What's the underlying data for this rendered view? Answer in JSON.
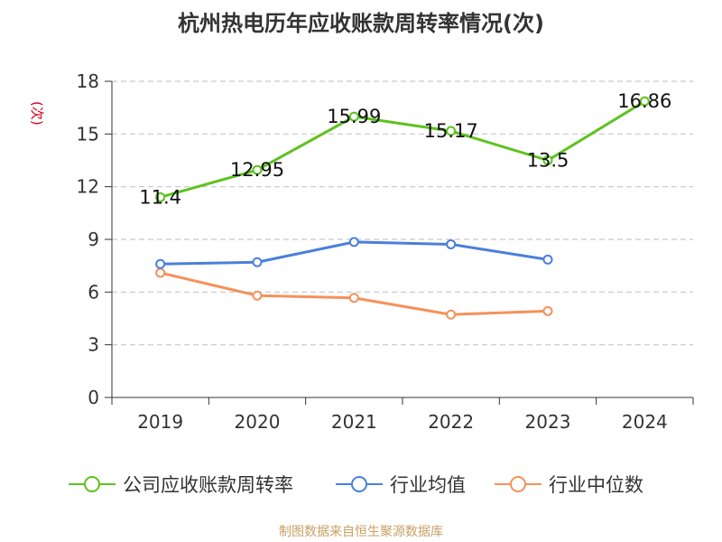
{
  "title": "杭州热电历年应收账款周转率情况(次)",
  "y_unit": "(次)",
  "footer": "制图数据来自恒生聚源数据库",
  "colors": {
    "company": "#5ec21e",
    "industry_avg": "#4a7fdc",
    "industry_median": "#f5915a",
    "grid": "#c8c8c8",
    "axis": "#333333"
  },
  "legend": [
    {
      "label": "公司应收账款周转率",
      "series": 0
    },
    {
      "label": "行业均值",
      "series": 1
    },
    {
      "label": "行业中位数",
      "series": 2
    }
  ],
  "chart_data": {
    "type": "line",
    "title": "杭州热电历年应收账款周转率情况(次)",
    "ylabel": "(次)",
    "xlabel": "",
    "categories": [
      "2019",
      "2020",
      "2021",
      "2022",
      "2023",
      "2024"
    ],
    "ylim": [
      0,
      18
    ],
    "yticks": [
      0,
      3,
      6,
      9,
      12,
      15,
      18
    ],
    "grid": true,
    "legend_position": "bottom",
    "series": [
      {
        "name": "公司应收账款周转率",
        "values": [
          11.4,
          12.95,
          15.99,
          15.17,
          13.5,
          16.86
        ],
        "labels": [
          "11.4",
          "12.95",
          "15.99",
          "15.17",
          "13.5",
          "16.86"
        ],
        "color_key": "company"
      },
      {
        "name": "行业均值",
        "values": [
          7.6,
          7.7,
          8.85,
          8.72,
          7.85,
          null
        ],
        "color_key": "industry_avg"
      },
      {
        "name": "行业中位数",
        "values": [
          7.1,
          5.8,
          5.67,
          4.72,
          4.92,
          null
        ],
        "color_key": "industry_median"
      }
    ]
  }
}
